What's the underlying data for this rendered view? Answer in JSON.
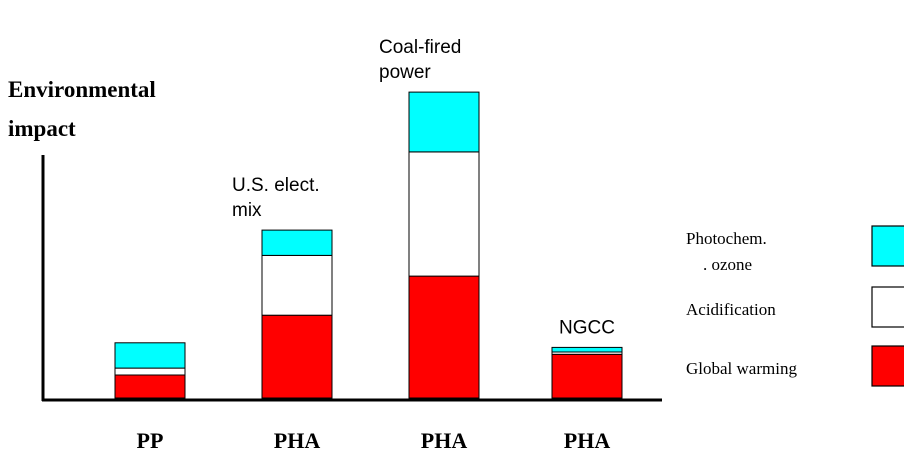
{
  "chart_data": {
    "type": "bar",
    "stacked": true,
    "ylabel_lines": [
      "Environmental",
      "impact"
    ],
    "categories": [
      "PP",
      "PHA",
      "PHA",
      "PHA"
    ],
    "bar_annotations": [
      [],
      [
        "U.S. elect.",
        "mix"
      ],
      [
        "Coal-fired",
        "power"
      ],
      [
        "NGCC"
      ]
    ],
    "series": [
      {
        "name": "Global warming",
        "color": "#ff0000",
        "values": [
          10,
          36,
          53,
          19
        ]
      },
      {
        "name": "Acidification",
        "color": "#ffffff",
        "values": [
          3,
          26,
          54,
          1
        ]
      },
      {
        "name": "Photochemical ozone",
        "legend_lines": [
          "Photochem.",
          ". ozone"
        ],
        "color": "#00ffff",
        "values": [
          11,
          11,
          26,
          2
        ]
      }
    ],
    "ylim": [
      0,
      140
    ],
    "yaxis_ticks": false,
    "grid": false,
    "legend_position": "right"
  }
}
